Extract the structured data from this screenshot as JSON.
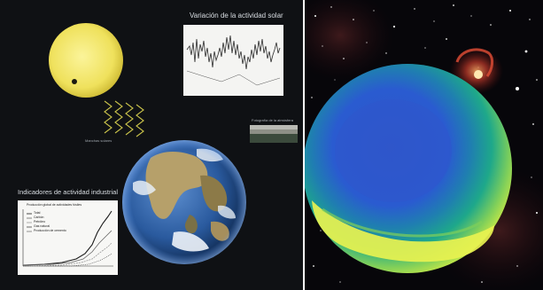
{
  "left_panel": {
    "solar_activity_title": "Variación de la actividad solar",
    "indicators_title": "Indicadores de actividad industrial",
    "sunspots_caption": "Manchas solares",
    "photo_caption": "Fotografía de la atmósfera",
    "industrial_chart": {
      "title": "Producción global de actividades fósiles",
      "legend": [
        "Total",
        "Carbón",
        "Petróleo",
        "Gas natural",
        "Producción de cemento"
      ]
    }
  },
  "right_panel": {
    "subject": "ozone-hole-globe",
    "nebula": "red-nebula"
  },
  "colors": {
    "sun": "#f2e46a",
    "ozone_low": "#2a5bd0",
    "ozone_mid": "#1ea88a",
    "ozone_high": "#e8f250",
    "nebula": "#c23a2a",
    "space": "#07060a"
  }
}
